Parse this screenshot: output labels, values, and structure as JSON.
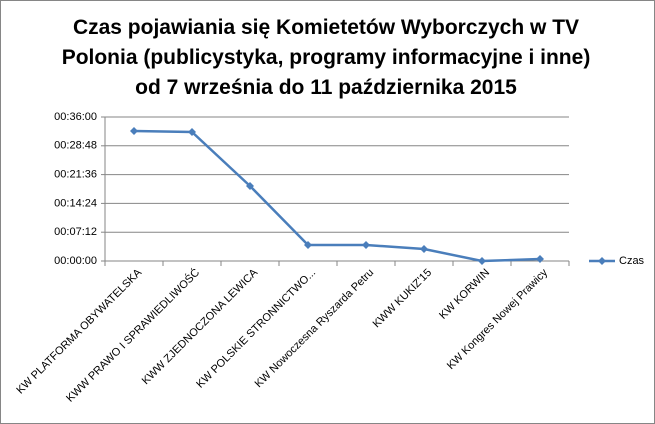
{
  "chart_data": {
    "type": "line",
    "title": "Czas pojawiania się Komietetów Wyborczych w TV Polonia (publicystyka, programy informacyjne i inne) od 7 września do 11 października 2015",
    "categories": [
      "KW PLATFORMA OBYWATELSKA",
      "KWW PRAWO I SPRAWIEDLIWOŚĆ",
      "KWW ZJEDNOCZONA LEWICA",
      "KW POLSKIE STRONNICTWO...",
      "KW Nowoczesna Ryszarda Petru",
      "KWW KUKIZ'15",
      "KW KORWIN",
      "KW Kongres Nowej Prawicy"
    ],
    "series": [
      {
        "name": "Czas",
        "color": "#4a7ebb",
        "values": [
          1950,
          1935,
          1125,
          240,
          240,
          180,
          0,
          30
        ]
      }
    ],
    "ylim": [
      0,
      2160
    ],
    "yticks": [
      {
        "value": 0,
        "label": "00:00:00"
      },
      {
        "value": 432,
        "label": "00:07:12"
      },
      {
        "value": 864,
        "label": "00:14:24"
      },
      {
        "value": 1296,
        "label": "00:21:36"
      },
      {
        "value": 1728,
        "label": "00:28:48"
      },
      {
        "value": 2160,
        "label": "00:36:00"
      }
    ],
    "grid": true,
    "legend": "right"
  }
}
